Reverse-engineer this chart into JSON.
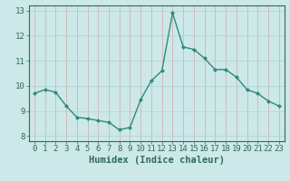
{
  "x": [
    0,
    1,
    2,
    3,
    4,
    5,
    6,
    7,
    8,
    9,
    10,
    11,
    12,
    13,
    14,
    15,
    16,
    17,
    18,
    19,
    20,
    21,
    22,
    23
  ],
  "y": [
    9.7,
    9.85,
    9.75,
    9.2,
    8.75,
    8.7,
    8.62,
    8.55,
    8.25,
    8.35,
    9.45,
    10.2,
    10.6,
    12.9,
    11.55,
    11.45,
    11.1,
    10.65,
    10.65,
    10.35,
    9.85,
    9.7,
    9.4,
    9.2
  ],
  "line_color": "#2e8b7a",
  "marker": "D",
  "marker_size": 2.0,
  "bg_color": "#cce8e8",
  "grid_color": "#aad4d4",
  "xlabel": "Humidex (Indice chaleur)",
  "ylim": [
    7.8,
    13.2
  ],
  "xlim": [
    -0.5,
    23.5
  ],
  "yticks": [
    8,
    9,
    10,
    11,
    12,
    13
  ],
  "xticks": [
    0,
    1,
    2,
    3,
    4,
    5,
    6,
    7,
    8,
    9,
    10,
    11,
    12,
    13,
    14,
    15,
    16,
    17,
    18,
    19,
    20,
    21,
    22,
    23
  ],
  "tick_color": "#2e6b5a",
  "spine_color": "#2e6b5a",
  "label_color": "#2e6b5a",
  "xlabel_fontsize": 7.5,
  "tick_fontsize": 6.5,
  "linewidth": 1.0
}
